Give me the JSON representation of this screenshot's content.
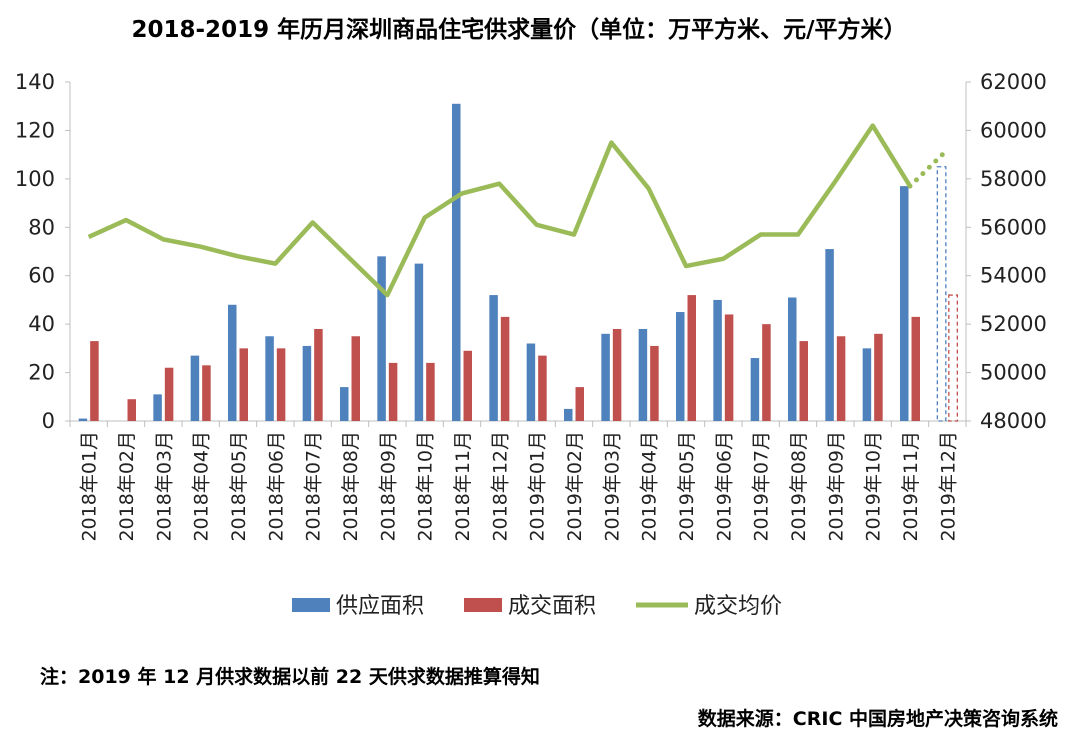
{
  "chart_data": {
    "type": "bar",
    "title": "2018-2019 年历月深圳商品住宅供求量价（单位：万平方米、元/平方米）",
    "categories": [
      "2018年01月",
      "2018年02月",
      "2018年03月",
      "2018年04月",
      "2018年05月",
      "2018年06月",
      "2018年07月",
      "2018年08月",
      "2018年09月",
      "2018年10月",
      "2018年11月",
      "2018年12月",
      "2019年01月",
      "2019年02月",
      "2019年03月",
      "2019年04月",
      "2019年05月",
      "2019年06月",
      "2019年07月",
      "2019年08月",
      "2019年09月",
      "2019年10月",
      "2019年11月",
      "2019年12月"
    ],
    "y_left": {
      "min": 0,
      "max": 140,
      "ticks": [
        "0",
        "20",
        "40",
        "60",
        "80",
        "100",
        "120",
        "140"
      ]
    },
    "y_right": {
      "min": 48000,
      "max": 62000,
      "ticks": [
        "48000",
        "50000",
        "52000",
        "54000",
        "56000",
        "58000",
        "60000",
        "62000"
      ]
    },
    "series": [
      {
        "name": "供应面积",
        "kind": "bar",
        "axis": "left",
        "color": "#4f81bd",
        "values": [
          1,
          0,
          11,
          27,
          48,
          35,
          31,
          14,
          68,
          65,
          131,
          52,
          32,
          5,
          36,
          38,
          45,
          50,
          26,
          51,
          71,
          30,
          97,
          105
        ],
        "dashed_last": true
      },
      {
        "name": "成交面积",
        "kind": "bar",
        "axis": "left",
        "color": "#c0504d",
        "values": [
          33,
          9,
          22,
          23,
          30,
          30,
          38,
          35,
          24,
          24,
          29,
          43,
          27,
          14,
          38,
          31,
          52,
          44,
          40,
          33,
          35,
          36,
          43,
          52
        ],
        "dashed_last": true
      },
      {
        "name": "成交均价",
        "kind": "line",
        "axis": "right",
        "color": "#9bbb59",
        "values": [
          55600,
          56300,
          55500,
          55200,
          54800,
          54500,
          56200,
          54700,
          53200,
          56400,
          57400,
          57800,
          56100,
          55700,
          59500,
          57600,
          54400,
          54700,
          55700,
          55700,
          57900,
          60200,
          57700,
          59200
        ],
        "dotted_last": true
      }
    ],
    "legend_position": "bottom",
    "grid": false
  },
  "note": "注：2019 年 12 月供求数据以前 22 天供求数据推算得知",
  "source": "数据来源：CRIC 中国房地产决策咨询系统"
}
